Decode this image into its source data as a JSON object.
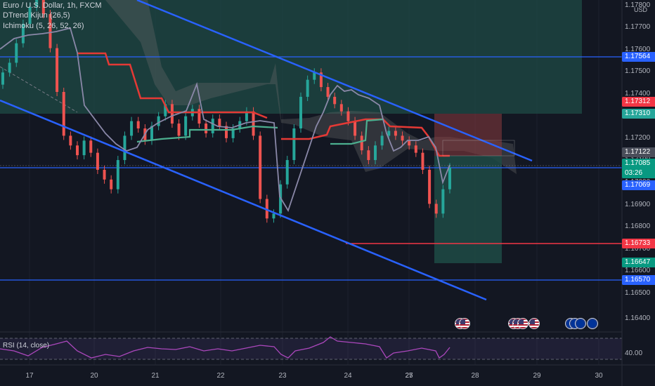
{
  "legend": {
    "symbol": "Euro / U.S. Dollar, 1h, FXCM",
    "indicator1": "DTrend Kijun (26,5)",
    "indicator2": "Ichimoku (5, 26, 52, 26)",
    "rsi": "RSI (14, close)"
  },
  "price_axis": {
    "currency": "USD",
    "ticks": [
      "1.17800",
      "1.17700",
      "1.17600",
      "1.17500",
      "1.17400",
      "1.17300",
      "1.17200",
      "1.17100",
      "1.17000",
      "1.16900",
      "1.16800",
      "1.16700",
      "1.16600",
      "1.16500",
      "1.16400"
    ],
    "rsi_tick": "40.00"
  },
  "price_tags": [
    {
      "label": "1.17564",
      "color": "#2962ff"
    },
    {
      "label": "1.17312",
      "color": "#f23645"
    },
    {
      "label": "1.17310",
      "color": "#26a69a"
    },
    {
      "label": "1.17122",
      "color": "#4a4e5a"
    },
    {
      "label": "1.17085",
      "sub": "03:26",
      "color": "#089981"
    },
    {
      "label": "1.17069",
      "color": "#2962ff"
    },
    {
      "label": "1.16733",
      "color": "#f23645"
    },
    {
      "label": "1.16647",
      "color": "#089981"
    },
    {
      "label": "1.16570",
      "color": "#2962ff"
    }
  ],
  "time_axis": [
    "17",
    "20",
    "21",
    "22",
    "23",
    "24",
    "25",
    "27",
    "28",
    "29",
    "30"
  ],
  "colors": {
    "background": "#131722",
    "up": "#26a69a",
    "down": "#ef5350",
    "channel": "#2962ff",
    "kijun_red": "#e53935",
    "kijun_green": "#4caf8f",
    "tenkan": "#8a88a8"
  },
  "events": [
    "us-flag-icon",
    "us-flag-icon",
    "us-flag-icon",
    "us-flag-icon",
    "us-flag-icon",
    "us-flag-icon",
    "eu-flag-icon",
    "eu-flag-icon",
    "eu-flag-icon",
    "eu-flag-icon"
  ],
  "chart_data": {
    "type": "candlestick",
    "price_range": [
      1.1635,
      1.1785
    ],
    "horizontal_levels": [
      1.17564,
      1.17069,
      1.16733,
      1.1657
    ],
    "closes": [
      1.1748,
      1.1752,
      1.176,
      1.1768,
      1.1775,
      1.1779,
      1.1772,
      1.1758,
      1.174,
      1.1722,
      1.1718,
      1.1714,
      1.172,
      1.1715,
      1.1708,
      1.1704,
      1.17,
      1.1712,
      1.1722,
      1.1728,
      1.1725,
      1.172,
      1.1726,
      1.173,
      1.1735,
      1.1727,
      1.1722,
      1.173,
      1.1733,
      1.1727,
      1.1723,
      1.1729,
      1.1726,
      1.1721,
      1.1725,
      1.1728,
      1.1732,
      1.1722,
      1.1696,
      1.1688,
      1.169,
      1.1702,
      1.1712,
      1.1725,
      1.1738,
      1.1745,
      1.1748,
      1.1742,
      1.1738,
      1.1735,
      1.1732,
      1.1728,
      1.1722,
      1.1716,
      1.1712,
      1.1718,
      1.1722,
      1.1724,
      1.1722,
      1.172,
      1.1718,
      1.1715,
      1.1708,
      1.1694,
      1.169,
      1.17,
      1.1709
    ]
  }
}
